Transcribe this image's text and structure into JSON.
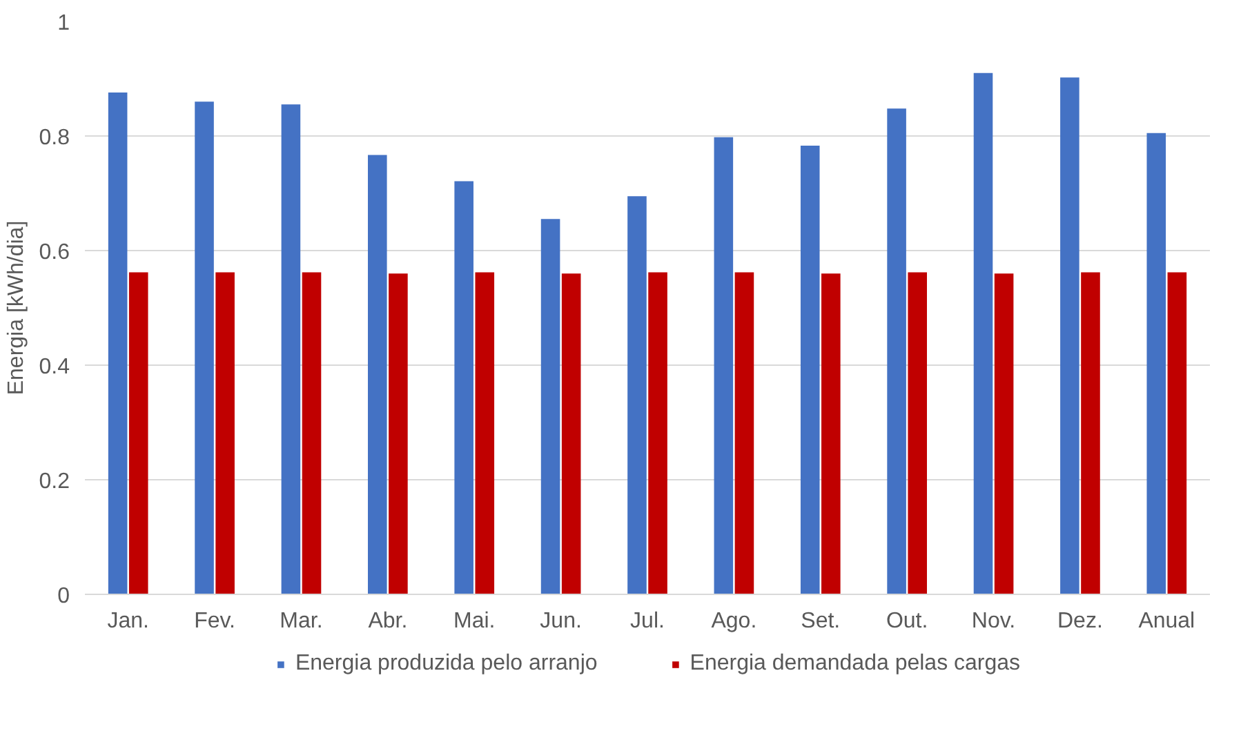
{
  "chart_data": {
    "type": "bar",
    "ylabel": "Energia [kWh/dia]",
    "categories": [
      "Jan.",
      "Fev.",
      "Mar.",
      "Abr.",
      "Mai.",
      "Jun.",
      "Jul.",
      "Ago.",
      "Set.",
      "Out.",
      "Nov.",
      "Dez.",
      "Anual"
    ],
    "series": [
      {
        "name": "Energia produzida pelo arranjo",
        "color": "#4472c4",
        "values": [
          0.876,
          0.86,
          0.855,
          0.767,
          0.721,
          0.655,
          0.695,
          0.798,
          0.783,
          0.848,
          0.91,
          0.902,
          0.805
        ]
      },
      {
        "name": "Energia demandada pelas cargas",
        "color": "#c00000",
        "values": [
          0.562,
          0.562,
          0.562,
          0.56,
          0.562,
          0.56,
          0.562,
          0.562,
          0.56,
          0.562,
          0.56,
          0.562,
          0.562
        ]
      }
    ],
    "ylim": [
      0,
      1
    ],
    "yticks": [
      0,
      0.2,
      0.4,
      0.6,
      0.8,
      1
    ],
    "grid": "y",
    "legend": "bottom"
  }
}
